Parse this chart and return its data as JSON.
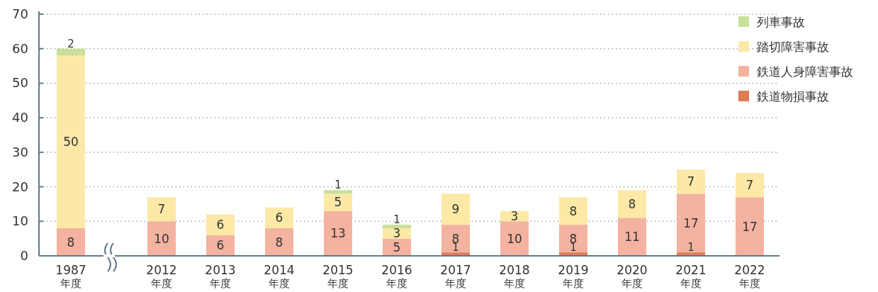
{
  "chart_data": {
    "type": "bar",
    "stacked": true,
    "categories": [
      "1987\n年度",
      "2012\n年度",
      "2013\n年度",
      "2014\n年度",
      "2015\n年度",
      "2016\n年度",
      "2017\n年度",
      "2018\n年度",
      "2019\n年度",
      "2020\n年度",
      "2021\n年度",
      "2022\n年度"
    ],
    "series": [
      {
        "name": "鉄道物損事故",
        "color": "#e07b56",
        "values": [
          null,
          null,
          null,
          null,
          null,
          null,
          1,
          null,
          1,
          null,
          1,
          null
        ]
      },
      {
        "name": "鉄道人身障害事故",
        "color": "#f4b2a0",
        "values": [
          8,
          10,
          6,
          8,
          13,
          5,
          8,
          10,
          8,
          11,
          17,
          17
        ]
      },
      {
        "name": "踏切障害事故",
        "color": "#fde9a6",
        "values": [
          50,
          7,
          6,
          6,
          5,
          3,
          9,
          3,
          8,
          8,
          7,
          7
        ]
      },
      {
        "name": "列車事故",
        "color": "#c8e09a",
        "values": [
          2,
          null,
          null,
          null,
          1,
          1,
          null,
          null,
          null,
          null,
          null,
          null
        ]
      }
    ],
    "ylim": [
      0,
      70
    ],
    "yticks": [
      0,
      10,
      20,
      30,
      40,
      50,
      60,
      70
    ],
    "grid": "y",
    "legend": "top right",
    "data_labels": true
  }
}
